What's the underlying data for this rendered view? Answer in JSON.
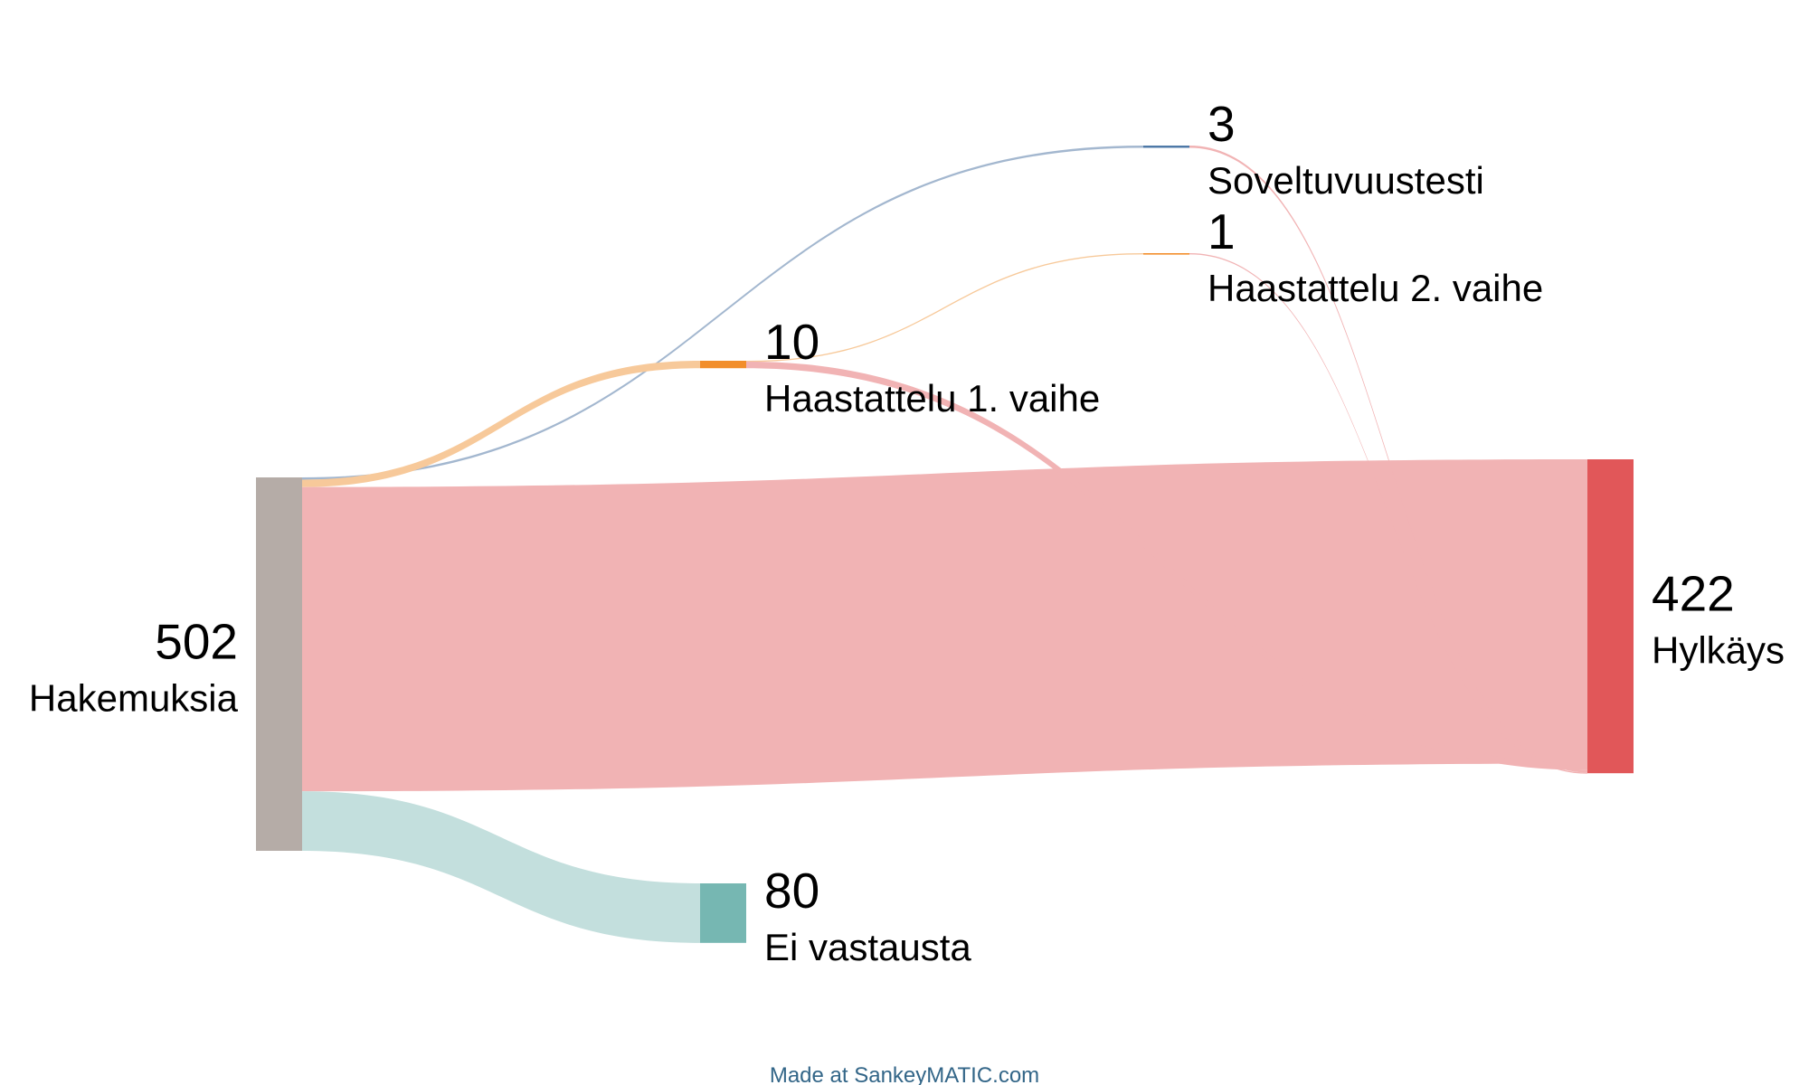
{
  "chart_data": {
    "type": "sankey",
    "nodes": [
      {
        "id": "hakemuksia",
        "label": "Hakemuksia",
        "value": 502,
        "color": "#b5aca7"
      },
      {
        "id": "haastattelu1",
        "label": "Haastattelu 1. vaihe",
        "value": 10,
        "color": "#f28e2b"
      },
      {
        "id": "soveltuvuustesti",
        "label": "Soveltuvuustesti",
        "value": 3,
        "color": "#4e79a7"
      },
      {
        "id": "haastattelu2",
        "label": "Haastattelu 2. vaihe",
        "value": 1,
        "color": "#f28e2b"
      },
      {
        "id": "hylkays",
        "label": "Hylkäys",
        "value": 422,
        "color": "#e15759"
      },
      {
        "id": "ei_vastausta",
        "label": "Ei vastausta",
        "value": 80,
        "color": "#76b7b2"
      }
    ],
    "links": [
      {
        "source": "hakemuksia",
        "target": "soveltuvuustesti",
        "value": 3,
        "color": "#a3b7cf"
      },
      {
        "source": "hakemuksia",
        "target": "haastattelu1",
        "value": 10,
        "color": "#f7c99a"
      },
      {
        "source": "hakemuksia",
        "target": "hylkays",
        "value": 409,
        "color": "#f1b3b4"
      },
      {
        "source": "hakemuksia",
        "target": "ei_vastausta",
        "value": 80,
        "color": "#c3dfdd"
      },
      {
        "source": "haastattelu1",
        "target": "haastattelu2",
        "value": 1,
        "color": "#f7c99a"
      },
      {
        "source": "haastattelu1",
        "target": "hylkays",
        "value": 9,
        "color": "#f1b3b4"
      },
      {
        "source": "soveltuvuustesti",
        "target": "hylkays",
        "value": 3,
        "color": "#f1b3b4"
      },
      {
        "source": "haastattelu2",
        "target": "hylkays",
        "value": 1,
        "color": "#f1b3b4"
      }
    ]
  },
  "footer": {
    "credit": "Made at SankeyMATIC.com",
    "credit_color": "#336688"
  }
}
